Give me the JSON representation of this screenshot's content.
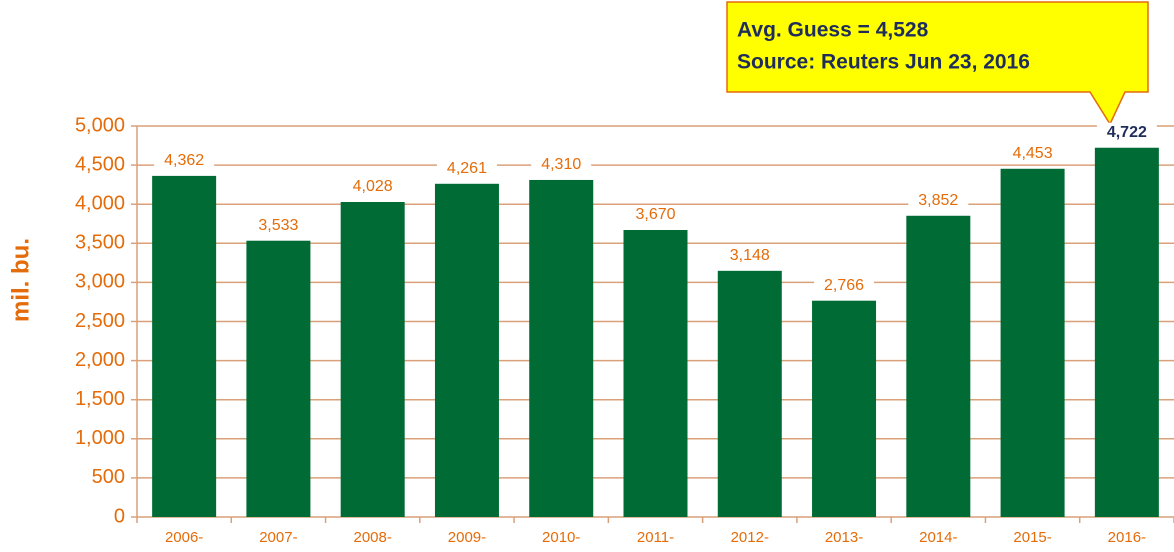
{
  "chart_data": {
    "type": "bar",
    "ylabel": "mil. bu.",
    "categories": [
      "2006-",
      "2007-",
      "2008-",
      "2009-",
      "2010-",
      "2011-",
      "2012-",
      "2013-",
      "2014-",
      "2015-",
      "2016-"
    ],
    "values": [
      4362,
      3533,
      4028,
      4261,
      4310,
      3670,
      3148,
      2766,
      3852,
      4453,
      4722
    ],
    "value_labels": [
      "4,362",
      "3,533",
      "4,028",
      "4,261",
      "4,310",
      "3,670",
      "3,148",
      "2,766",
      "3,852",
      "4,453",
      "4,722"
    ],
    "value_label_colors": [
      "#e46c0a",
      "#e46c0a",
      "#e46c0a",
      "#e46c0a",
      "#e46c0a",
      "#e46c0a",
      "#e46c0a",
      "#e46c0a",
      "#e46c0a",
      "#e46c0a",
      "#1f2d5a"
    ],
    "color": "#006b34",
    "ylim": [
      0,
      5000
    ],
    "yticks": [
      0,
      500,
      {
        "value": 1000,
        "label": "1,000"
      },
      {
        "value": 1500,
        "label": "1,500"
      },
      {
        "value": 2000,
        "label": "2,000"
      },
      {
        "value": 2500,
        "label": "2,500"
      },
      {
        "value": 3000,
        "label": "3,000"
      },
      {
        "value": 3500,
        "label": "3,500"
      },
      {
        "value": 4000,
        "label": "4,000"
      },
      {
        "value": 4500,
        "label": "4,500"
      },
      {
        "value": 5000,
        "label": "5,000"
      }
    ],
    "grid": true,
    "annotation": [
      "Avg. Guess = 4,528",
      "Source: Reuters Jun 23, 2016"
    ]
  }
}
